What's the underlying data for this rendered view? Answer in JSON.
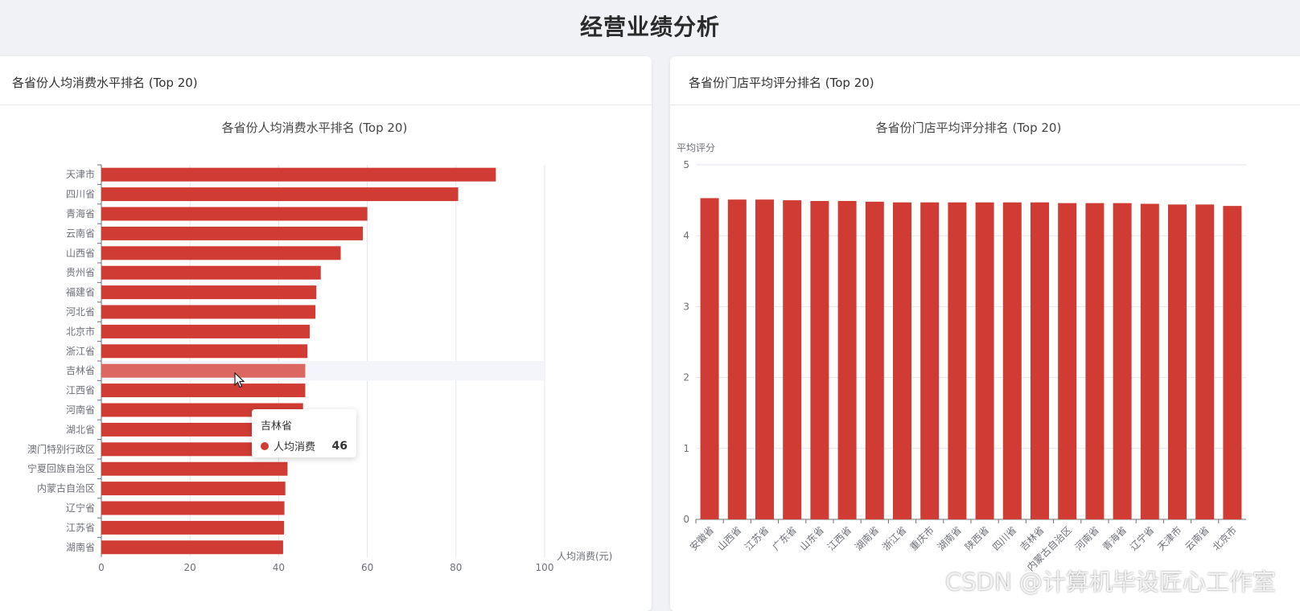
{
  "page": {
    "title": "经营业绩分析"
  },
  "left_card": {
    "header": "各省份人均消费水平排名 (Top 20)"
  },
  "right_card": {
    "header": "各省份门店平均评分排名 (Top 20)"
  },
  "tooltip": {
    "title": "吉林省",
    "series_name": "人均消费",
    "value": "46"
  },
  "watermark": "CSDN @计算机毕设匠心工作室",
  "colors": {
    "bar": "#d03c33",
    "bar_highlight": "#dc6660",
    "axis": "#6e7079",
    "grid": "#e0e6f1"
  },
  "chart_data": [
    {
      "type": "bar",
      "orientation": "horizontal",
      "title": "各省份人均消费水平排名 (Top 20)",
      "xlabel": "人均消费(元)",
      "ylabel": "",
      "xlim": [
        0,
        100
      ],
      "x_ticks": [
        0,
        20,
        40,
        60,
        80,
        100
      ],
      "highlighted_category": "吉林省",
      "categories": [
        "天津市",
        "四川省",
        "青海省",
        "云南省",
        "山西省",
        "贵州省",
        "福建省",
        "河北省",
        "北京市",
        "浙江省",
        "吉林省",
        "江西省",
        "河南省",
        "湖北省",
        "澳门特别行政区",
        "宁夏回族自治区",
        "内蒙古自治区",
        "辽宁省",
        "江苏省",
        "湖南省"
      ],
      "series": [
        {
          "name": "人均消费",
          "values": [
            89,
            80.5,
            60,
            59,
            54,
            49.5,
            48.5,
            48.3,
            47,
            46.5,
            46,
            46,
            45.5,
            45,
            44.5,
            42,
            41.5,
            41.3,
            41.2,
            41
          ]
        }
      ]
    },
    {
      "type": "bar",
      "title": "各省份门店平均评分排名 (Top 20)",
      "xlabel": "",
      "ylabel": "平均评分",
      "ylim": [
        0,
        5
      ],
      "y_ticks": [
        0,
        1,
        2,
        3,
        4,
        5
      ],
      "categories": [
        "安徽省",
        "山西省",
        "江苏省",
        "广东省",
        "山东省",
        "江西省",
        "湖南省",
        "浙江省",
        "重庆市",
        "湖南省",
        "陕西省",
        "四川省",
        "吉林省",
        "内蒙古自治区",
        "河南省",
        "青海省",
        "辽宁省",
        "天津市",
        "云南省",
        "北京市"
      ],
      "series": [
        {
          "values": [
            4.53,
            4.51,
            4.51,
            4.5,
            4.49,
            4.49,
            4.48,
            4.47,
            4.47,
            4.47,
            4.47,
            4.47,
            4.47,
            4.46,
            4.46,
            4.46,
            4.45,
            4.44,
            4.44,
            4.42
          ]
        }
      ]
    }
  ]
}
